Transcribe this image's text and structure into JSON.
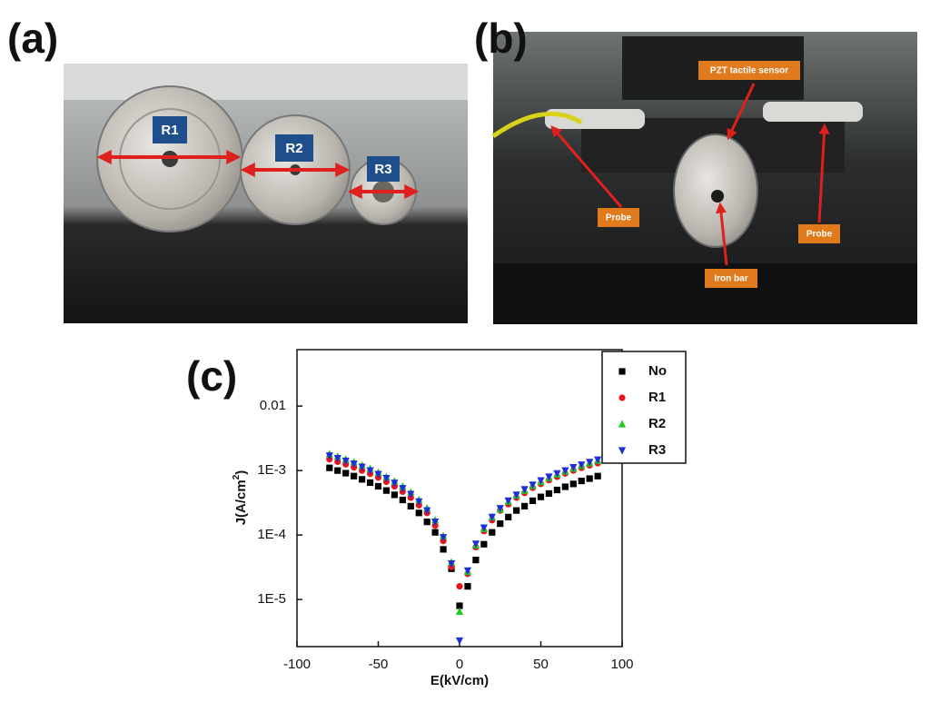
{
  "panels": {
    "a": {
      "label": "(a)",
      "tags": [
        "R1",
        "R2",
        "R3"
      ]
    },
    "b": {
      "label": "(b)",
      "tags": [
        "PZT tactile sensor",
        "Probe",
        "Probe",
        "Iron bar"
      ]
    }
  },
  "chart_data": {
    "type": "scatter",
    "panel_label": "(c)",
    "x_label": "E(kV/cm)",
    "y_label": {
      "text": "J(A/cm",
      "superscript": "2",
      "close": ")"
    },
    "x": [
      -80,
      -75,
      -70,
      -65,
      -60,
      -55,
      -50,
      -45,
      -40,
      -35,
      -30,
      -25,
      -20,
      -15,
      -10,
      -5,
      0,
      5,
      10,
      15,
      20,
      25,
      30,
      35,
      40,
      45,
      50,
      55,
      60,
      65,
      70,
      75,
      80,
      85
    ],
    "series": [
      {
        "name": "No",
        "color": "#000000",
        "marker": "square",
        "values": [
          0.0011,
          0.001,
          0.00091,
          0.00082,
          0.00073,
          0.00065,
          0.00057,
          0.00049,
          0.00042,
          0.00035,
          0.00028,
          0.00022,
          0.00016,
          0.00011,
          6e-05,
          3e-05,
          8e-06,
          1.6e-05,
          4.1e-05,
          7.2e-05,
          0.00011,
          0.00015,
          0.00019,
          0.00024,
          0.00028,
          0.00034,
          0.00039,
          0.00044,
          0.0005,
          0.00056,
          0.00062,
          0.00069,
          0.00075,
          0.00082
        ]
      },
      {
        "name": "R1",
        "color": "#e8141c",
        "marker": "circle",
        "values": [
          0.0015,
          0.00137,
          0.00125,
          0.00112,
          0.001,
          0.00089,
          0.00078,
          0.00067,
          0.00057,
          0.00047,
          0.00038,
          0.00029,
          0.00022,
          0.00014,
          8.1e-05,
          3.2e-05,
          1.6e-05,
          2.5e-05,
          6.5e-05,
          0.000115,
          0.00017,
          0.00024,
          0.0003,
          0.00038,
          0.00045,
          0.00054,
          0.00062,
          0.00071,
          0.0008,
          0.0009,
          0.001,
          0.0011,
          0.0012,
          0.0013
        ]
      },
      {
        "name": "R2",
        "color": "#22cc22",
        "marker": "triangle-up",
        "values": [
          0.0018,
          0.00165,
          0.00149,
          0.00135,
          0.0012,
          0.00107,
          0.00093,
          0.0008,
          0.00068,
          0.00057,
          0.00046,
          0.00035,
          0.00026,
          0.00017,
          9.7e-05,
          3.8e-05,
          6.5e-06,
          2.7e-05,
          7e-05,
          0.000125,
          0.00019,
          0.00025,
          0.00033,
          0.00041,
          0.00049,
          0.00058,
          0.00067,
          0.00077,
          0.00087,
          0.00097,
          0.00108,
          0.00119,
          0.0013,
          0.00142
        ]
      },
      {
        "name": "R3",
        "color": "#1f2fd6",
        "marker": "triangle-down",
        "values": [
          0.0017,
          0.00155,
          0.00141,
          0.00127,
          0.00114,
          0.001,
          0.00088,
          0.00076,
          0.00064,
          0.00053,
          0.00043,
          0.00033,
          0.00024,
          0.00016,
          9.2e-05,
          3.6e-05,
          2.3e-06,
          2.8e-05,
          7.3e-05,
          0.00013,
          0.00019,
          0.00026,
          0.00034,
          0.00042,
          0.00051,
          0.0006,
          0.0007,
          0.0008,
          0.0009,
          0.001,
          0.00112,
          0.00123,
          0.00135,
          0.00147
        ]
      }
    ],
    "xlim": [
      -100,
      100
    ],
    "xticks": [
      -100,
      -50,
      0,
      50,
      100
    ],
    "ylim": [
      1.86e-06,
      0.075
    ],
    "log_y": true,
    "yticks": [
      {
        "value": 1e-05,
        "label": "1E-5"
      },
      {
        "value": 0.0001,
        "label": "1E-4"
      },
      {
        "value": 0.001,
        "label": "1E-3"
      },
      0.01
    ],
    "legend": "top-right"
  }
}
